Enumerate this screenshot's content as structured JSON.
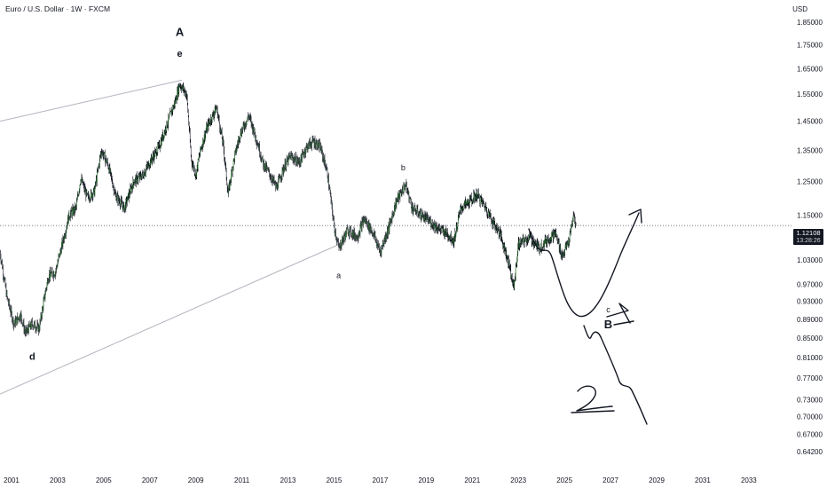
{
  "header": {
    "title": "Euro / U.S. Dollar · 1W · FXCM",
    "currency": "USD"
  },
  "last_price": "1.12108",
  "countdown": "13:28:26",
  "colors": {
    "candle_up": "#2e7d32",
    "candle_down": "#131722",
    "trendline": "#b2b5be",
    "price_line": "#787b86",
    "price_tag_bg": "#131722",
    "drawing": "#131722"
  },
  "chart_data": {
    "type": "candlestick",
    "title": "Euro / U.S. Dollar · 1W · FXCM",
    "xlabel": "",
    "ylabel": "",
    "x_ticks": [
      "2001",
      "2003",
      "2005",
      "2007",
      "2009",
      "2011",
      "2013",
      "2015",
      "2017",
      "2019",
      "2021",
      "2023",
      "2025",
      "2027",
      "2029",
      "2031",
      "2033"
    ],
    "y_ticks": [
      "1.85000",
      "1.75000",
      "1.65000",
      "1.55000",
      "1.45000",
      "1.35000",
      "1.25000",
      "1.15000",
      "1.03000",
      "0.97000",
      "0.93000",
      "0.89000",
      "0.85000",
      "0.81000",
      "0.77000",
      "0.73000",
      "0.70000",
      "0.67000",
      "0.64200"
    ],
    "xlim": [
      2000.5,
      2034.7
    ],
    "ylim": [
      0.627,
      1.955
    ],
    "scale": "log",
    "grid": false,
    "last_price": 1.12108,
    "price_path": [
      [
        2000.5,
        1.05
      ],
      [
        2000.8,
        0.94
      ],
      [
        2001.1,
        0.88
      ],
      [
        2001.4,
        0.9
      ],
      [
        2001.6,
        0.86
      ],
      [
        2001.9,
        0.88
      ],
      [
        2002.2,
        0.87
      ],
      [
        2002.6,
        0.99
      ],
      [
        2002.9,
        1.0
      ],
      [
        2003.2,
        1.07
      ],
      [
        2003.5,
        1.15
      ],
      [
        2003.8,
        1.17
      ],
      [
        2004.0,
        1.26
      ],
      [
        2004.3,
        1.2
      ],
      [
        2004.6,
        1.22
      ],
      [
        2004.9,
        1.35
      ],
      [
        2005.2,
        1.3
      ],
      [
        2005.5,
        1.21
      ],
      [
        2005.9,
        1.17
      ],
      [
        2006.3,
        1.25
      ],
      [
        2006.7,
        1.27
      ],
      [
        2007.0,
        1.31
      ],
      [
        2007.4,
        1.36
      ],
      [
        2007.8,
        1.45
      ],
      [
        2008.1,
        1.52
      ],
      [
        2008.3,
        1.59
      ],
      [
        2008.6,
        1.55
      ],
      [
        2008.8,
        1.32
      ],
      [
        2009.0,
        1.27
      ],
      [
        2009.2,
        1.35
      ],
      [
        2009.5,
        1.43
      ],
      [
        2009.9,
        1.5
      ],
      [
        2010.2,
        1.36
      ],
      [
        2010.4,
        1.21
      ],
      [
        2010.6,
        1.3
      ],
      [
        2010.9,
        1.4
      ],
      [
        2011.3,
        1.47
      ],
      [
        2011.7,
        1.37
      ],
      [
        2011.9,
        1.31
      ],
      [
        2012.3,
        1.26
      ],
      [
        2012.5,
        1.23
      ],
      [
        2012.8,
        1.29
      ],
      [
        2013.1,
        1.33
      ],
      [
        2013.5,
        1.31
      ],
      [
        2013.8,
        1.36
      ],
      [
        2014.1,
        1.38
      ],
      [
        2014.4,
        1.36
      ],
      [
        2014.7,
        1.28
      ],
      [
        2015.0,
        1.12
      ],
      [
        2015.2,
        1.06
      ],
      [
        2015.6,
        1.11
      ],
      [
        2016.0,
        1.09
      ],
      [
        2016.3,
        1.14
      ],
      [
        2016.7,
        1.1
      ],
      [
        2017.0,
        1.05
      ],
      [
        2017.4,
        1.12
      ],
      [
        2017.7,
        1.19
      ],
      [
        2018.1,
        1.24
      ],
      [
        2018.4,
        1.17
      ],
      [
        2018.8,
        1.15
      ],
      [
        2019.2,
        1.13
      ],
      [
        2019.6,
        1.11
      ],
      [
        2019.9,
        1.1
      ],
      [
        2020.2,
        1.08
      ],
      [
        2020.5,
        1.17
      ],
      [
        2020.9,
        1.19
      ],
      [
        2021.2,
        1.21
      ],
      [
        2021.6,
        1.17
      ],
      [
        2021.9,
        1.13
      ],
      [
        2022.2,
        1.1
      ],
      [
        2022.6,
        1.02
      ],
      [
        2022.8,
        0.96
      ],
      [
        2023.0,
        1.07
      ],
      [
        2023.5,
        1.09
      ],
      [
        2023.9,
        1.06
      ],
      [
        2024.2,
        1.08
      ],
      [
        2024.6,
        1.1
      ],
      [
        2024.9,
        1.04
      ],
      [
        2025.2,
        1.08
      ],
      [
        2025.4,
        1.15
      ],
      [
        2025.5,
        1.12108
      ]
    ],
    "trendlines": [
      {
        "from": [
          2000.5,
          1.45
        ],
        "to": [
          2008.4,
          1.605
        ]
      },
      {
        "from": [
          2000.5,
          0.74
        ],
        "to": [
          2015.2,
          1.07
        ]
      }
    ],
    "annotations": [
      {
        "text": "A",
        "x": 2008.3,
        "y": 1.79,
        "bold": true
      },
      {
        "text": "e",
        "x": 2008.3,
        "y": 1.7,
        "bold": true
      },
      {
        "text": "d",
        "x": 2001.9,
        "y": 0.805,
        "bold": true
      },
      {
        "text": "a",
        "x": 2015.2,
        "y": 0.985,
        "bold": false
      },
      {
        "text": "b",
        "x": 2018.0,
        "y": 1.285,
        "bold": false
      },
      {
        "text": "c",
        "x": 2026.9,
        "y": 0.905,
        "bold": false
      },
      {
        "text": "B",
        "x": 2026.9,
        "y": 0.87,
        "bold": true
      },
      {
        "text": "1",
        "x": 2030.1,
        "y": 0.925,
        "bold": false,
        "handwritten": true
      },
      {
        "text": "2",
        "x": 2029.3,
        "y": 0.743,
        "bold": false,
        "handwritten": true
      }
    ]
  }
}
